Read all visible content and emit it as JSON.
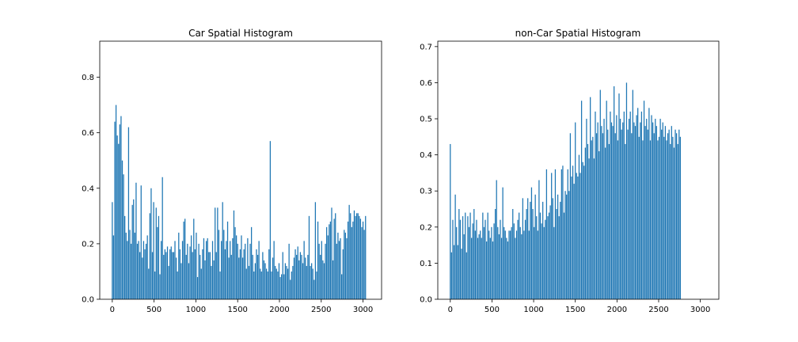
{
  "chart_data": [
    {
      "type": "bar",
      "title": "Car Spatial Histogram",
      "xlabel": "",
      "ylabel": "",
      "xlim": [
        -150,
        3222
      ],
      "ylim": [
        0,
        0.93
      ],
      "xticks": [
        0,
        500,
        1000,
        1500,
        2000,
        2500,
        3000
      ],
      "yticks": [
        0.0,
        0.2,
        0.4,
        0.6,
        0.8
      ],
      "ytick_format": 1,
      "bar_color": "#1f77b4",
      "grid": false,
      "x_start": 0,
      "x_step": 15,
      "values": [
        0.35,
        0.23,
        0.64,
        0.7,
        0.59,
        0.56,
        0.63,
        0.66,
        0.5,
        0.45,
        0.3,
        0.24,
        0.21,
        0.62,
        0.25,
        0.2,
        0.34,
        0.36,
        0.24,
        0.42,
        0.2,
        0.21,
        0.17,
        0.41,
        0.15,
        0.21,
        0.18,
        0.2,
        0.23,
        0.11,
        0.31,
        0.4,
        0.17,
        0.35,
        0.1,
        0.33,
        0.26,
        0.3,
        0.09,
        0.21,
        0.44,
        0.16,
        0.18,
        0.17,
        0.19,
        0.12,
        0.18,
        0.19,
        0.17,
        0.17,
        0.21,
        0.15,
        0.1,
        0.24,
        0.18,
        0.13,
        0.21,
        0.28,
        0.29,
        0.16,
        0.2,
        0.13,
        0.19,
        0.23,
        0.17,
        0.29,
        0.18,
        0.24,
        0.08,
        0.2,
        0.16,
        0.11,
        0.18,
        0.22,
        0.14,
        0.21,
        0.22,
        0.17,
        0.17,
        0.12,
        0.21,
        0.14,
        0.33,
        0.17,
        0.33,
        0.25,
        0.1,
        0.21,
        0.35,
        0.25,
        0.18,
        0.21,
        0.28,
        0.15,
        0.21,
        0.16,
        0.22,
        0.32,
        0.26,
        0.23,
        0.2,
        0.15,
        0.18,
        0.23,
        0.15,
        0.18,
        0.2,
        0.11,
        0.22,
        0.12,
        0.2,
        0.26,
        0.16,
        0.1,
        0.13,
        0.18,
        0.16,
        0.21,
        0.11,
        0.1,
        0.17,
        0.14,
        0.13,
        0.11,
        0.1,
        0.18,
        0.57,
        0.1,
        0.15,
        0.21,
        0.12,
        0.11,
        0.1,
        0.13,
        0.08,
        0.09,
        0.17,
        0.09,
        0.13,
        0.12,
        0.11,
        0.2,
        0.07,
        0.1,
        0.12,
        0.15,
        0.18,
        0.16,
        0.19,
        0.14,
        0.17,
        0.16,
        0.13,
        0.21,
        0.15,
        0.12,
        0.16,
        0.3,
        0.12,
        0.13,
        0.11,
        0.07,
        0.35,
        0.1,
        0.28,
        0.2,
        0.16,
        0.21,
        0.14,
        0.13,
        0.2,
        0.26,
        0.23,
        0.27,
        0.28,
        0.33,
        0.14,
        0.29,
        0.31,
        0.2,
        0.24,
        0.21,
        0.22,
        0.09,
        0.18,
        0.25,
        0.24,
        0.22,
        0.28,
        0.34,
        0.31,
        0.26,
        0.28,
        0.32,
        0.3,
        0.31,
        0.31,
        0.3,
        0.29,
        0.26,
        0.28,
        0.25,
        0.3
      ]
    },
    {
      "type": "bar",
      "title": "non-Car Spatial Histogram",
      "xlabel": "",
      "ylabel": "",
      "xlim": [
        -150,
        3222
      ],
      "ylim": [
        0,
        0.715
      ],
      "xticks": [
        0,
        500,
        1000,
        1500,
        2000,
        2500,
        3000
      ],
      "yticks": [
        0.0,
        0.1,
        0.2,
        0.3,
        0.4,
        0.5,
        0.6,
        0.7
      ],
      "ytick_format": 1,
      "bar_color": "#1f77b4",
      "grid": false,
      "x_start": 0,
      "x_step": 15,
      "values": [
        0.43,
        0.13,
        0.22,
        0.15,
        0.29,
        0.2,
        0.15,
        0.25,
        0.22,
        0.14,
        0.23,
        0.18,
        0.24,
        0.13,
        0.23,
        0.2,
        0.24,
        0.17,
        0.21,
        0.25,
        0.19,
        0.22,
        0.17,
        0.18,
        0.19,
        0.17,
        0.24,
        0.2,
        0.22,
        0.16,
        0.24,
        0.19,
        0.17,
        0.2,
        0.16,
        0.21,
        0.25,
        0.33,
        0.2,
        0.18,
        0.22,
        0.17,
        0.31,
        0.2,
        0.19,
        0.17,
        0.16,
        0.19,
        0.19,
        0.2,
        0.25,
        0.21,
        0.17,
        0.19,
        0.22,
        0.24,
        0.2,
        0.18,
        0.28,
        0.19,
        0.22,
        0.25,
        0.28,
        0.19,
        0.27,
        0.31,
        0.25,
        0.2,
        0.29,
        0.23,
        0.19,
        0.33,
        0.24,
        0.21,
        0.27,
        0.2,
        0.22,
        0.36,
        0.23,
        0.24,
        0.26,
        0.35,
        0.28,
        0.2,
        0.36,
        0.25,
        0.29,
        0.23,
        0.27,
        0.36,
        0.37,
        0.24,
        0.3,
        0.29,
        0.36,
        0.3,
        0.46,
        0.34,
        0.37,
        0.32,
        0.49,
        0.35,
        0.34,
        0.4,
        0.35,
        0.55,
        0.38,
        0.37,
        0.42,
        0.5,
        0.43,
        0.39,
        0.56,
        0.44,
        0.45,
        0.39,
        0.52,
        0.46,
        0.49,
        0.41,
        0.58,
        0.48,
        0.46,
        0.5,
        0.42,
        0.55,
        0.47,
        0.43,
        0.52,
        0.49,
        0.48,
        0.59,
        0.46,
        0.51,
        0.44,
        0.57,
        0.5,
        0.47,
        0.49,
        0.52,
        0.43,
        0.6,
        0.47,
        0.5,
        0.52,
        0.46,
        0.58,
        0.49,
        0.48,
        0.51,
        0.53,
        0.45,
        0.49,
        0.52,
        0.44,
        0.55,
        0.48,
        0.5,
        0.47,
        0.53,
        0.44,
        0.51,
        0.49,
        0.46,
        0.5,
        0.48,
        0.44,
        0.45,
        0.5,
        0.47,
        0.49,
        0.45,
        0.48,
        0.44,
        0.46,
        0.47,
        0.43,
        0.48,
        0.45,
        0.42,
        0.47,
        0.46,
        0.43,
        0.47,
        0.45
      ]
    }
  ]
}
